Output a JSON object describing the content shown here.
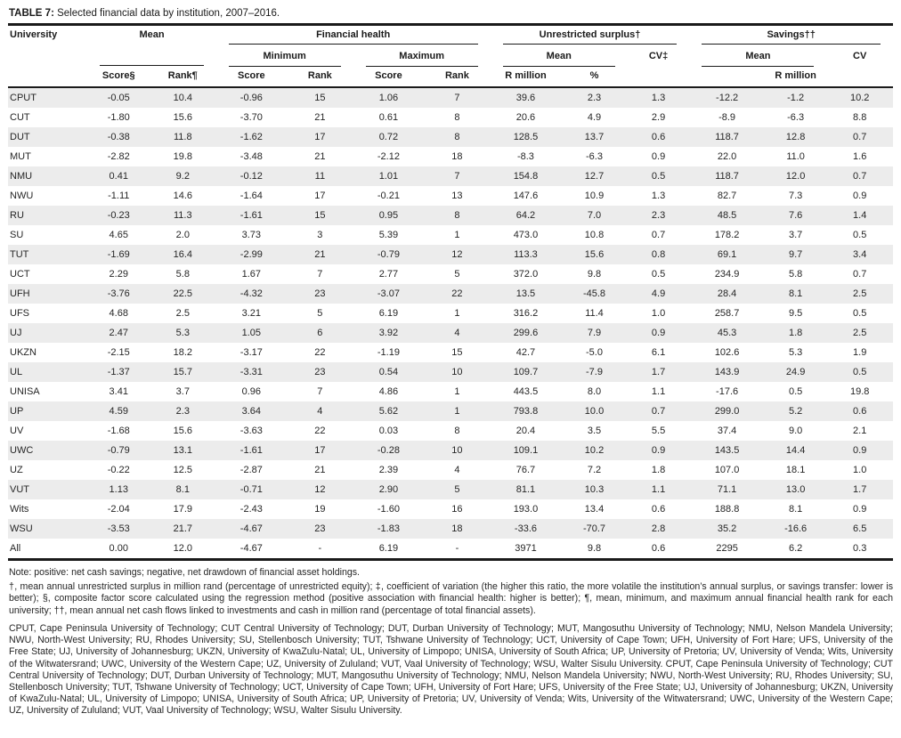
{
  "title": {
    "label": "TABLE 7:",
    "text": " Selected financial data by institution, 2007–2016."
  },
  "table": {
    "header": {
      "university": "University",
      "mean_group": "Mean",
      "financial_health_group": "Financial health",
      "unrestricted_surplus_group": "Unrestricted surplus†",
      "savings_group": "Savings††",
      "minimum": "Minimum",
      "maximum": "Maximum",
      "mean_surplus": "Mean",
      "cv_surplus": "CV‡",
      "mean_savings": "Mean",
      "cv_savings": "CV",
      "score_mean": "Score§",
      "rank_mean": "Rank¶",
      "score_min": "Score",
      "rank_min": "Rank",
      "score_max": "Score",
      "rank_max": "Rank",
      "rmillion_surplus": "R million",
      "pct_surplus": "%",
      "rmillion_savings": "R million",
      "pct_savings": "%"
    },
    "rows": [
      {
        "university": "CPUT",
        "values": [
          "-0.05",
          "10.4",
          "-0.96",
          "15",
          "1.06",
          "7",
          "39.6",
          "2.3",
          "1.3",
          "-12.2",
          "-1.2",
          "10.2"
        ]
      },
      {
        "university": "CUT",
        "values": [
          "-1.80",
          "15.6",
          "-3.70",
          "21",
          "0.61",
          "8",
          "20.6",
          "4.9",
          "2.9",
          "-8.9",
          "-6.3",
          "8.8"
        ]
      },
      {
        "university": "DUT",
        "values": [
          "-0.38",
          "11.8",
          "-1.62",
          "17",
          "0.72",
          "8",
          "128.5",
          "13.7",
          "0.6",
          "118.7",
          "12.8",
          "0.7"
        ]
      },
      {
        "university": "MUT",
        "values": [
          "-2.82",
          "19.8",
          "-3.48",
          "21",
          "-2.12",
          "18",
          "-8.3",
          "-6.3",
          "0.9",
          "22.0",
          "11.0",
          "1.6"
        ]
      },
      {
        "university": "NMU",
        "values": [
          "0.41",
          "9.2",
          "-0.12",
          "11",
          "1.01",
          "7",
          "154.8",
          "12.7",
          "0.5",
          "118.7",
          "12.0",
          "0.7"
        ]
      },
      {
        "university": "NWU",
        "values": [
          "-1.11",
          "14.6",
          "-1.64",
          "17",
          "-0.21",
          "13",
          "147.6",
          "10.9",
          "1.3",
          "82.7",
          "7.3",
          "0.9"
        ]
      },
      {
        "university": "RU",
        "values": [
          "-0.23",
          "11.3",
          "-1.61",
          "15",
          "0.95",
          "8",
          "64.2",
          "7.0",
          "2.3",
          "48.5",
          "7.6",
          "1.4"
        ]
      },
      {
        "university": "SU",
        "values": [
          "4.65",
          "2.0",
          "3.73",
          "3",
          "5.39",
          "1",
          "473.0",
          "10.8",
          "0.7",
          "178.2",
          "3.7",
          "0.5"
        ]
      },
      {
        "university": "TUT",
        "values": [
          "-1.69",
          "16.4",
          "-2.99",
          "21",
          "-0.79",
          "12",
          "113.3",
          "15.6",
          "0.8",
          "69.1",
          "9.7",
          "3.4"
        ]
      },
      {
        "university": "UCT",
        "values": [
          "2.29",
          "5.8",
          "1.67",
          "7",
          "2.77",
          "5",
          "372.0",
          "9.8",
          "0.5",
          "234.9",
          "5.8",
          "0.7"
        ]
      },
      {
        "university": "UFH",
        "values": [
          "-3.76",
          "22.5",
          "-4.32",
          "23",
          "-3.07",
          "22",
          "13.5",
          "-45.8",
          "4.9",
          "28.4",
          "8.1",
          "2.5"
        ]
      },
      {
        "university": "UFS",
        "values": [
          "4.68",
          "2.5",
          "3.21",
          "5",
          "6.19",
          "1",
          "316.2",
          "11.4",
          "1.0",
          "258.7",
          "9.5",
          "0.5"
        ]
      },
      {
        "university": "UJ",
        "values": [
          "2.47",
          "5.3",
          "1.05",
          "6",
          "3.92",
          "4",
          "299.6",
          "7.9",
          "0.9",
          "45.3",
          "1.8",
          "2.5"
        ]
      },
      {
        "university": "UKZN",
        "values": [
          "-2.15",
          "18.2",
          "-3.17",
          "22",
          "-1.19",
          "15",
          "42.7",
          "-5.0",
          "6.1",
          "102.6",
          "5.3",
          "1.9"
        ]
      },
      {
        "university": "UL",
        "values": [
          "-1.37",
          "15.7",
          "-3.31",
          "23",
          "0.54",
          "10",
          "109.7",
          "-7.9",
          "1.7",
          "143.9",
          "24.9",
          "0.5"
        ]
      },
      {
        "university": "UNISA",
        "values": [
          "3.41",
          "3.7",
          "0.96",
          "7",
          "4.86",
          "1",
          "443.5",
          "8.0",
          "1.1",
          "-17.6",
          "0.5",
          "19.8"
        ]
      },
      {
        "university": "UP",
        "values": [
          "4.59",
          "2.3",
          "3.64",
          "4",
          "5.62",
          "1",
          "793.8",
          "10.0",
          "0.7",
          "299.0",
          "5.2",
          "0.6"
        ]
      },
      {
        "university": "UV",
        "values": [
          "-1.68",
          "15.6",
          "-3.63",
          "22",
          "0.03",
          "8",
          "20.4",
          "3.5",
          "5.5",
          "37.4",
          "9.0",
          "2.1"
        ]
      },
      {
        "university": "UWC",
        "values": [
          "-0.79",
          "13.1",
          "-1.61",
          "17",
          "-0.28",
          "10",
          "109.1",
          "10.2",
          "0.9",
          "143.5",
          "14.4",
          "0.9"
        ]
      },
      {
        "university": "UZ",
        "values": [
          "-0.22",
          "12.5",
          "-2.87",
          "21",
          "2.39",
          "4",
          "76.7",
          "7.2",
          "1.8",
          "107.0",
          "18.1",
          "1.0"
        ]
      },
      {
        "university": "VUT",
        "values": [
          "1.13",
          "8.1",
          "-0.71",
          "12",
          "2.90",
          "5",
          "81.1",
          "10.3",
          "1.1",
          "71.1",
          "13.0",
          "1.7"
        ]
      },
      {
        "university": "Wits",
        "values": [
          "-2.04",
          "17.9",
          "-2.43",
          "19",
          "-1.60",
          "16",
          "193.0",
          "13.4",
          "0.6",
          "188.8",
          "8.1",
          "0.9"
        ]
      },
      {
        "university": "WSU",
        "values": [
          "-3.53",
          "21.7",
          "-4.67",
          "23",
          "-1.83",
          "18",
          "-33.6",
          "-70.7",
          "2.8",
          "35.2",
          "-16.6",
          "6.5"
        ]
      },
      {
        "university": "All",
        "values": [
          "0.00",
          "12.0",
          "-4.67",
          "-",
          "6.19",
          "-",
          "3971",
          "9.8",
          "0.6",
          "2295",
          "6.2",
          "0.3"
        ]
      }
    ]
  },
  "notes": {
    "note": "Note: positive: net cash savings; negative, net drawdown of financial asset holdings.",
    "footnotes": "†, mean annual unrestricted surplus in million rand (percentage of unrestricted equity); ‡, coefficient of variation (the higher this ratio, the more volatile the institution’s annual surplus, or savings transfer: lower is better); §, composite factor score calculated using the regression method (positive association with financial health: higher is better); ¶, mean, minimum, and maximum annual financial health rank for each university; ††, mean annual net cash flows linked to investments and cash in million rand (percentage of total financial assets).",
    "abbreviations": "CPUT, Cape Peninsula University of Technology; CUT Central University of Technology; DUT, Durban University of Technology; MUT, Mangosuthu University of Technology; NMU, Nelson Mandela University; NWU, North-West University; RU, Rhodes University; SU, Stellenbosch University; TUT, Tshwane University of Technology; UCT, University of Cape Town; UFH, University of Fort Hare; UFS, University of the Free State; UJ, University of Johannesburg; UKZN, University of KwaZulu-Natal; UL, University of Limpopo; UNISA, University of South Africa; UP, University of Pretoria; UV, University of Venda; Wits, University of the Witwatersrand; UWC, University of the Western Cape; UZ, University of Zululand; VUT, Vaal University of Technology; WSU, Walter Sisulu University. CPUT, Cape Peninsula University of Technology; CUT Central University of Technology; DUT, Durban University of Technology; MUT, Mangosuthu University of Technology; NMU, Nelson Mandela University; NWU, North-West University; RU, Rhodes University; SU, Stellenbosch University; TUT, Tshwane University of Technology; UCT, University of Cape Town; UFH, University of Fort Hare; UFS, University of the Free State; UJ, University of Johannesburg; UKZN, University of KwaZulu-Natal; UL, University of Limpopo; UNISA, University of South Africa; UP, University of Pretoria; UV, University of Venda; Wits, University of the Witwatersrand; UWC, University of the Western Cape; UZ, University of Zululand; VUT, Vaal University of Technology; WSU, Walter Sisulu University."
  },
  "colors": {
    "stripe": "#ececec",
    "rule": "#1a1a1a",
    "text": "#262626"
  }
}
